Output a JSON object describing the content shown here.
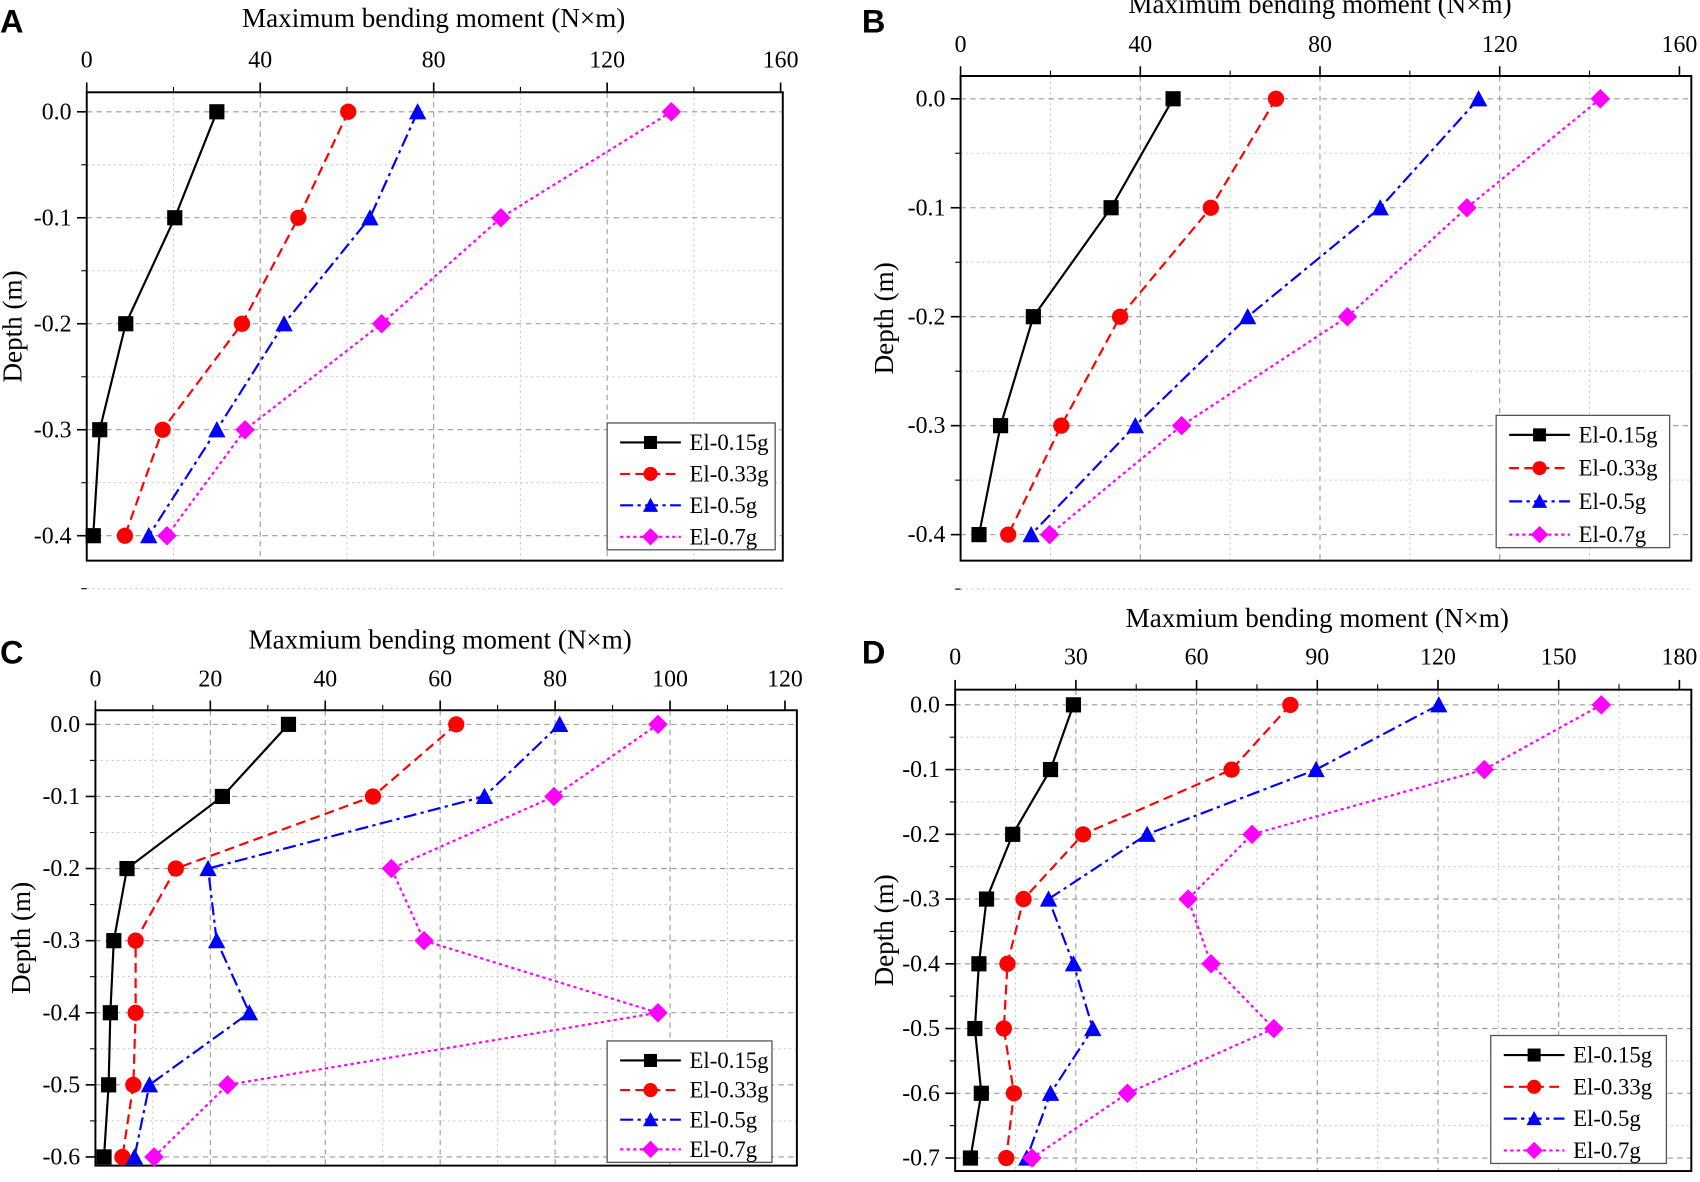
{
  "chart_data": [
    {
      "panel": "A",
      "type": "line",
      "title": "Maximum bending moment (N×m)",
      "xlabel": "Maximum bending moment (N×m)",
      "ylabel": "Depth (m)",
      "xlim": [
        0,
        160
      ],
      "xticks": [
        0,
        40,
        80,
        120,
        160
      ],
      "ylim": [
        -0.4,
        0.0
      ],
      "yticks": [
        0.0,
        -0.1,
        -0.2,
        -0.3,
        -0.4
      ],
      "ytick_labels": [
        "0.0",
        "-0.1",
        "-0.2",
        "-0.3",
        "-0.4"
      ],
      "legend_position": "bottom-right",
      "grid": true,
      "depth": [
        0.0,
        -0.1,
        -0.2,
        -0.3,
        -0.4
      ],
      "series": [
        {
          "name": "El-0.15g",
          "values": [
            30,
            20.3,
            9,
            3,
            1.5
          ]
        },
        {
          "name": "El-0.33g",
          "values": [
            60.3,
            48.8,
            35.8,
            17.5,
            8.8
          ]
        },
        {
          "name": "El-0.5g",
          "values": [
            76.3,
            65.3,
            45.5,
            30,
            14.3
          ]
        },
        {
          "name": "El-0.7g",
          "values": [
            134.8,
            95.5,
            68,
            36.5,
            18.5
          ]
        }
      ]
    },
    {
      "panel": "B",
      "type": "line",
      "title": "Maximum bending moment (N×m)",
      "xlabel": "Maximum bending moment (N×m)",
      "ylabel": "Depth (m)",
      "xlim": [
        0,
        160
      ],
      "xticks": [
        0,
        40,
        80,
        120,
        160
      ],
      "ylim": [
        -0.4,
        0.0
      ],
      "yticks": [
        0.0,
        -0.1,
        -0.2,
        -0.3,
        -0.4
      ],
      "ytick_labels": [
        "0.0",
        "-0.1",
        "-0.2",
        "-0.3",
        "-0.4"
      ],
      "legend_position": "bottom-right",
      "grid": true,
      "depth": [
        0.0,
        -0.1,
        -0.2,
        -0.3,
        -0.4
      ],
      "series": [
        {
          "name": "El-0.15g",
          "values": [
            47.3,
            33.5,
            16.2,
            8.9,
            4.1
          ]
        },
        {
          "name": "El-0.33g",
          "values": [
            70.2,
            55.7,
            35.5,
            22.4,
            10.6
          ]
        },
        {
          "name": "El-0.5g",
          "values": [
            115.3,
            93.4,
            63.9,
            38.9,
            15.7
          ]
        },
        {
          "name": "El-0.7g",
          "values": [
            142.4,
            112.7,
            86.1,
            49.2,
            19.8
          ]
        }
      ]
    },
    {
      "panel": "C",
      "type": "line",
      "title": "Maxmium bending moment (N×m)",
      "xlabel": "Maxmium bending moment (N×m)",
      "ylabel": "Depth (m)",
      "xlim": [
        0,
        120
      ],
      "xticks": [
        0,
        20,
        40,
        60,
        80,
        100,
        120
      ],
      "ylim": [
        -0.6,
        0.0
      ],
      "yticks": [
        0.0,
        -0.1,
        -0.2,
        -0.3,
        -0.4,
        -0.5,
        -0.6
      ],
      "ytick_labels": [
        "0.0",
        "-0.1",
        "-0.2",
        "-0.3",
        "-0.4",
        "-0.5",
        "-0.6"
      ],
      "legend_position": "bottom-right",
      "grid": true,
      "depth": [
        0.0,
        -0.1,
        -0.2,
        -0.3,
        -0.4,
        -0.5,
        -0.6
      ],
      "series": [
        {
          "name": "El-0.15g",
          "values": [
            33.6,
            22.1,
            5.5,
            3.2,
            2.6,
            2.3,
            1.5
          ]
        },
        {
          "name": "El-0.33g",
          "values": [
            62.8,
            48.3,
            14.0,
            7.0,
            7.0,
            6.6,
            4.7
          ]
        },
        {
          "name": "El-0.5g",
          "values": [
            80.8,
            67.7,
            19.6,
            21.1,
            26.8,
            9.4,
            6.8
          ]
        },
        {
          "name": "El-0.7g",
          "values": [
            97.9,
            79.8,
            51.5,
            57.2,
            97.9,
            23.0,
            10.2
          ]
        }
      ]
    },
    {
      "panel": "D",
      "type": "line",
      "title": "Maxmium bending moment (N×m)",
      "xlabel": "Maxmium bending moment (N×m)",
      "ylabel": "Depth (m)",
      "xlim": [
        0,
        180
      ],
      "xticks": [
        0,
        30,
        60,
        90,
        120,
        150,
        180
      ],
      "ylim": [
        -0.7,
        0.0
      ],
      "yticks": [
        0.0,
        -0.1,
        -0.2,
        -0.3,
        -0.4,
        -0.5,
        -0.6,
        -0.7
      ],
      "ytick_labels": [
        "0.0",
        "-0.1",
        "-0.2",
        "-0.3",
        "-0.4",
        "-0.5",
        "-0.6",
        "-0.7"
      ],
      "legend_position": "bottom-right",
      "grid": true,
      "depth": [
        0.0,
        -0.1,
        -0.2,
        -0.3,
        -0.4,
        -0.5,
        -0.6,
        -0.7
      ],
      "series": [
        {
          "name": "El-0.15g",
          "values": [
            29.4,
            23.7,
            14.3,
            7.8,
            5.9,
            4.9,
            6.5,
            3.8
          ]
        },
        {
          "name": "El-0.33g",
          "values": [
            83.3,
            68.7,
            31.8,
            17.0,
            13.0,
            12.1,
            14.6,
            12.7
          ]
        },
        {
          "name": "El-0.5g",
          "values": [
            120.2,
            89.7,
            47.7,
            23.2,
            29.4,
            34.2,
            23.7,
            17.8
          ]
        },
        {
          "name": "El-0.7g",
          "values": [
            160.6,
            131.5,
            73.8,
            57.9,
            63.6,
            79.2,
            42.8,
            19.1
          ]
        }
      ]
    }
  ],
  "series_style": [
    {
      "color": "#000000",
      "marker": "square",
      "line": "solid"
    },
    {
      "color": "#ff0000",
      "marker": "circle",
      "line": "dashed"
    },
    {
      "color": "#0000ff",
      "marker": "triangle",
      "line": "dash-dot"
    },
    {
      "color": "#ff00ff",
      "marker": "diamond",
      "line": "dotted"
    }
  ]
}
